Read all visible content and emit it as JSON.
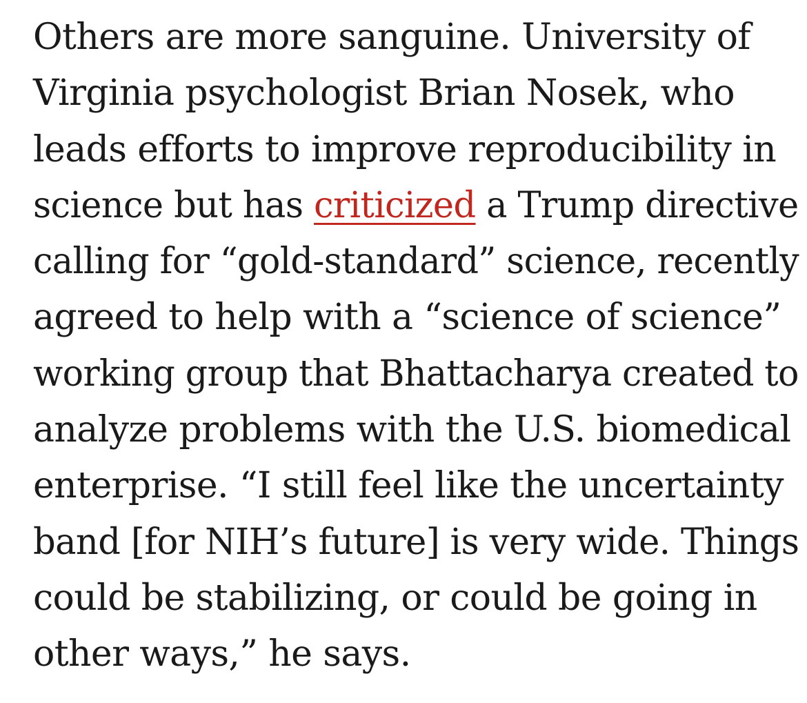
{
  "article": {
    "lines": [
      "Others are more sanguine. University of",
      "Virginia psychologist Brian Nosek, who",
      "leads efforts to improve reproducibility in",
      "science but has ",
      "calling for “gold-standard” science, recently",
      "agreed to help with a “science of science”",
      "working group that Bhattacharya created to",
      "analyze problems with the U.S. biomedical",
      "enterprise. “I still feel like the uncertainty",
      "band [for NIH’s future] is very wide. Things",
      "could be stabilizing, or could be going in",
      "other ways,” he says."
    ],
    "link_text": "criticized",
    "after_link": " a Trump directive",
    "link_color": "#c0271e",
    "text_color": "#1a1a1a"
  }
}
